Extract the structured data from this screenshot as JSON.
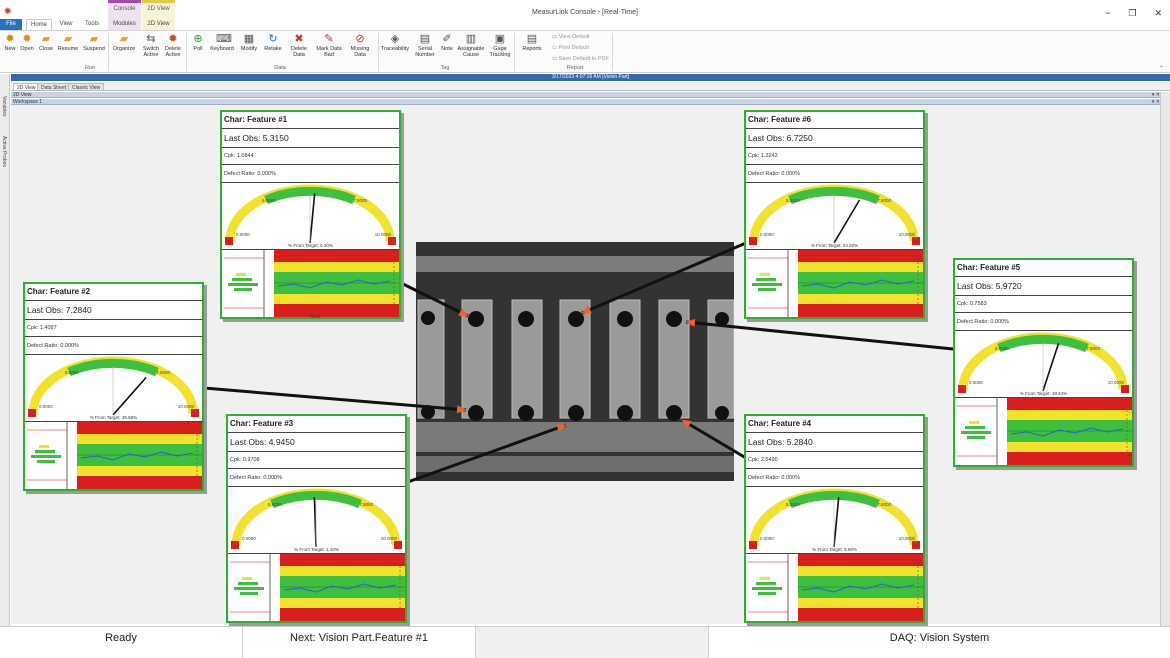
{
  "app": {
    "title": "MeasurLink Console - [Real-Time]",
    "context_groups": [
      {
        "label": "Console",
        "sub": "Modules"
      },
      {
        "label": "2D View",
        "sub": "2D View"
      }
    ],
    "tabs": [
      "File",
      "Home",
      "View",
      "Tools"
    ],
    "window_buttons": [
      "−",
      "❐",
      "✕"
    ]
  },
  "ribbon": {
    "run": {
      "label": "Run",
      "buttons": [
        "New",
        "Open",
        "Close",
        "Resume",
        "Suspend",
        "Organize",
        "Switch Active",
        "Delete Active"
      ]
    },
    "data": {
      "label": "Data",
      "buttons": [
        "Poll",
        "Keyboard",
        "Modify",
        "Retake",
        "Delete Data",
        "Mark Data Bad",
        "Missing Data"
      ]
    },
    "tag": {
      "label": "Tag",
      "buttons": [
        "Traceability",
        "Serial Number",
        "Note",
        "Assignable Cause",
        "Gage Tracking"
      ]
    },
    "report": {
      "label": "Report",
      "buttons": [
        "Reports"
      ],
      "items": [
        "View Default",
        "Print Default",
        "Save Default to PDF"
      ]
    }
  },
  "datebar": "3/17/2023 4:07:16 AM [Vision Part]",
  "rail": [
    "Variables",
    "Active Probes"
  ],
  "view_tabs": [
    "2D View",
    "Data Sheet",
    "Classic View"
  ],
  "pane_title": "2D View",
  "workspace_title": "Workspace 1",
  "gauge_labels": {
    "low": "0.0000",
    "high": "10.0000",
    "mid": "7.5000",
    "lo2": "5.0000"
  },
  "next_label": "Next",
  "cards": [
    {
      "char": "Char: Feature #1",
      "lastobs": "Last Obs: 5.3150",
      "cpk": "Cpk: 1.0844",
      "defect": "Defect Ratio: 0.000%",
      "pct": "% From Target: 6.30%",
      "needle": 0.53
    },
    {
      "char": "Char: Feature #2",
      "lastobs": "Last Obs: 7.2840",
      "cpk": "Cpk: 1.4097",
      "defect": "Defect Ratio: 0.000%",
      "pct": "% From Target: 45.68%",
      "needle": 0.73
    },
    {
      "char": "Char: Feature #3",
      "lastobs": "Last Obs: 4.9450",
      "cpk": "Cpk: 0.9708",
      "defect": "Defect Ratio: 0.000%",
      "pct": "% From Target: 1.10%",
      "needle": 0.49
    },
    {
      "char": "Char: Feature #4",
      "lastobs": "Last Obs: 5.2840",
      "cpk": "Cpk: 2.5490",
      "defect": "Defect Ratio: 0.000%",
      "pct": "% From Target: 5.68%",
      "needle": 0.53
    },
    {
      "char": "Char: Feature #5",
      "lastobs": "Last Obs: 5.9720",
      "cpk": "Cpk: 0.7583",
      "defect": "Defect Ratio: 0.000%",
      "pct": "% From Target: 19.44%",
      "needle": 0.6
    },
    {
      "char": "Char: Feature #6",
      "lastobs": "Last Obs: 6.7250",
      "cpk": "Cpk: 1.2242",
      "defect": "Defect Ratio: 0.000%",
      "pct": "% From Target: 34.50%",
      "needle": 0.67
    }
  ],
  "status": {
    "ready": "Ready",
    "next": "Next: Vision Part.Feature #1",
    "daq": "DAQ: Vision System"
  },
  "colors": {
    "card_border": "#2db12d",
    "file_tab": "#2b6fc2",
    "date_bar": "#3468a8",
    "arrow": "#f0602a"
  }
}
